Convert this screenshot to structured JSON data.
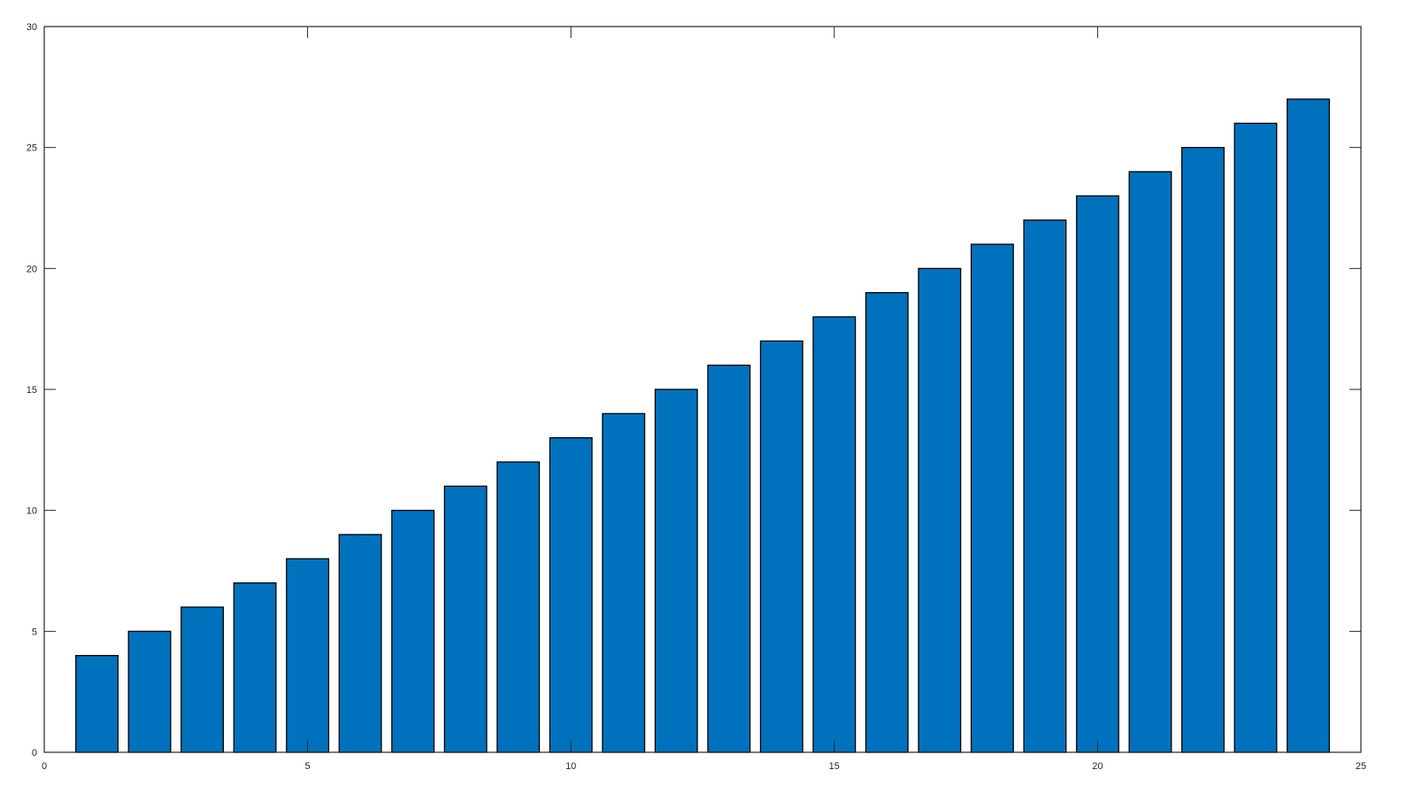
{
  "chart_data": {
    "type": "bar",
    "title": "",
    "xlabel": "",
    "ylabel": "",
    "x": [
      1,
      2,
      3,
      4,
      5,
      6,
      7,
      8,
      9,
      10,
      11,
      12,
      13,
      14,
      15,
      16,
      17,
      18,
      19,
      20,
      21,
      22,
      23,
      24
    ],
    "values": [
      4,
      5,
      6,
      7,
      8,
      9,
      10,
      11,
      12,
      13,
      14,
      15,
      16,
      17,
      18,
      19,
      20,
      21,
      22,
      23,
      24,
      25,
      26,
      27
    ],
    "xlim": [
      0,
      25
    ],
    "ylim": [
      0,
      30
    ],
    "xticks": [
      "0",
      "5",
      "10",
      "15",
      "20",
      "25"
    ],
    "yticks": [
      "0",
      "5",
      "10",
      "15",
      "20",
      "25",
      "30"
    ],
    "bar_width": 0.8,
    "grid": false,
    "colors": {
      "bar": "#0072BD",
      "edge": "#000000",
      "axis": "#262626"
    }
  }
}
